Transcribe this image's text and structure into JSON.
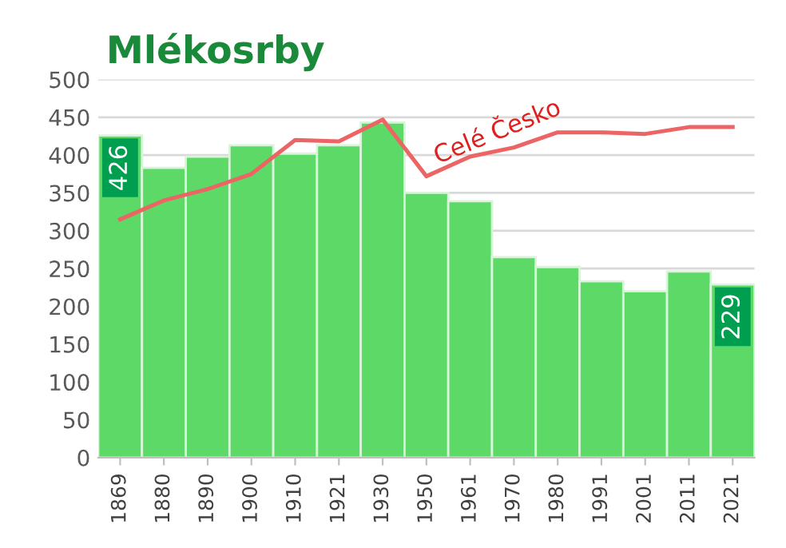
{
  "chart_data": {
    "type": "bar",
    "title": "Mlékosrby",
    "categories": [
      "1869",
      "1880",
      "1890",
      "1900",
      "1910",
      "1921",
      "1930",
      "1950",
      "1961",
      "1970",
      "1980",
      "1991",
      "2001",
      "2011",
      "2021"
    ],
    "series": [
      {
        "color": "#5cd966",
        "values": [
          426,
          383,
          398,
          413,
          402,
          413,
          443,
          350,
          339,
          265,
          252,
          233,
          220,
          246,
          229
        ],
        "value_labels": [
          "426",
          null,
          null,
          null,
          null,
          null,
          null,
          null,
          null,
          null,
          null,
          null,
          null,
          null,
          "229"
        ]
      },
      {
        "type": "line",
        "name": "Celé Česko",
        "color": "#ec6464",
        "values": [
          315,
          340,
          355,
          375,
          420,
          418,
          447,
          372,
          398,
          410,
          430,
          430,
          428,
          437,
          437
        ]
      }
    ],
    "ylim": [
      0,
      500
    ],
    "yticks": [
      0,
      50,
      100,
      150,
      200,
      250,
      300,
      350,
      400,
      450,
      500
    ],
    "grid": "y",
    "legend": false,
    "marker": "none",
    "line_style": "solid"
  }
}
